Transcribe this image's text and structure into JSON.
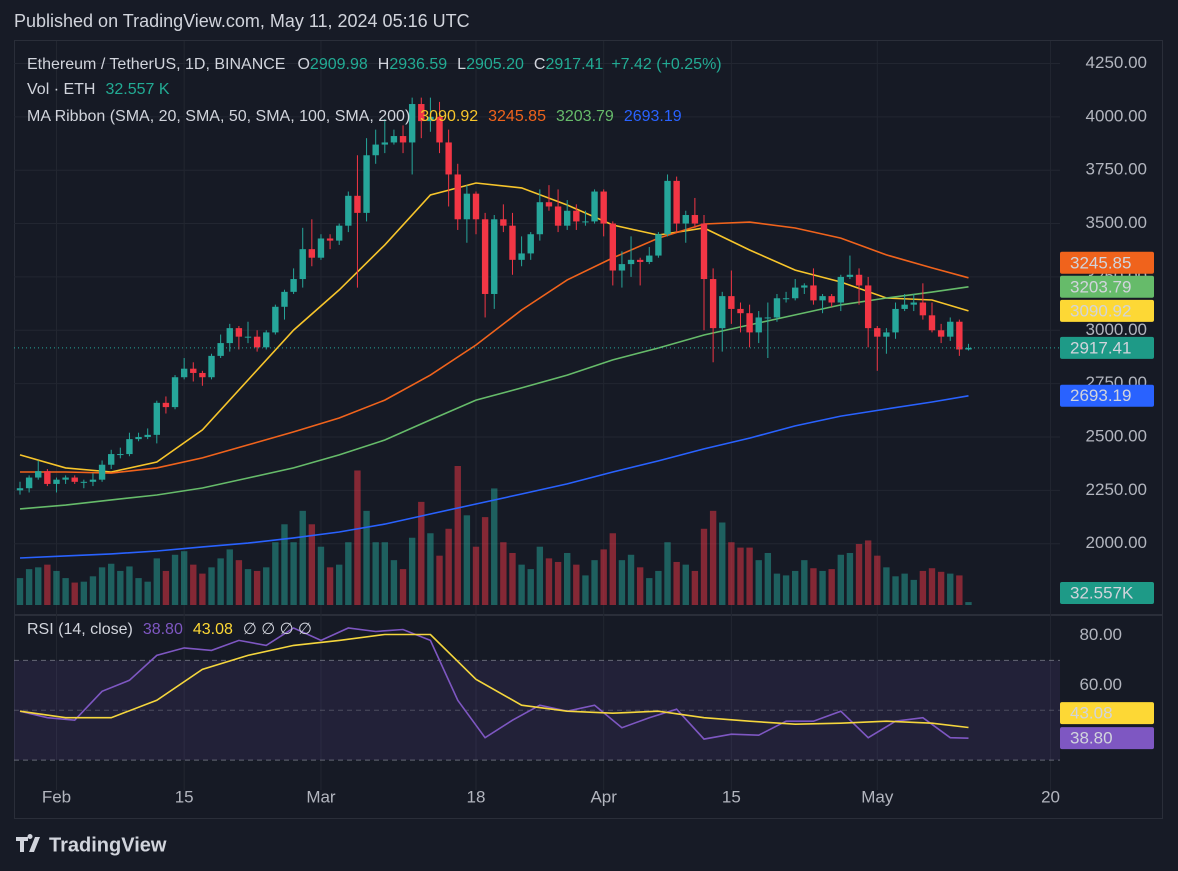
{
  "header": "Published on TradingView.com, May 11, 2024 05:16 UTC",
  "brand": "TradingView",
  "chart_data": [
    {
      "type": "candlestick",
      "title": "Ethereum / TetherUS, 1D, BINANCE",
      "legend": [
        {
          "key": "O",
          "value": "2909.98"
        },
        {
          "key": "H",
          "value": "2936.59"
        },
        {
          "key": "L",
          "value": "2905.20"
        },
        {
          "key": "C",
          "value": "2917.41"
        }
      ],
      "change": "+7.42 (+0.25%)",
      "volume_title": "Vol · ETH",
      "volume_legend": "32.557 K",
      "ma_title": "MA Ribbon (SMA, 20, SMA, 50, SMA, 100, SMA, 200)",
      "up_color": "#26a69a",
      "down_color": "#f23645",
      "categories": [
        "2024-01-28",
        "2024-01-29",
        "2024-01-30",
        "2024-01-31",
        "2024-02-01",
        "2024-02-02",
        "2024-02-03",
        "2024-02-04",
        "2024-02-05",
        "2024-02-06",
        "2024-02-07",
        "2024-02-08",
        "2024-02-09",
        "2024-02-10",
        "2024-02-11",
        "2024-02-12",
        "2024-02-13",
        "2024-02-14",
        "2024-02-15",
        "2024-02-16",
        "2024-02-17",
        "2024-02-18",
        "2024-02-19",
        "2024-02-20",
        "2024-02-21",
        "2024-02-22",
        "2024-02-23",
        "2024-02-24",
        "2024-02-25",
        "2024-02-26",
        "2024-02-27",
        "2024-02-28",
        "2024-02-29",
        "2024-03-01",
        "2024-03-02",
        "2024-03-03",
        "2024-03-04",
        "2024-03-05",
        "2024-03-06",
        "2024-03-07",
        "2024-03-08",
        "2024-03-09",
        "2024-03-10",
        "2024-03-11",
        "2024-03-12",
        "2024-03-13",
        "2024-03-14",
        "2024-03-15",
        "2024-03-16",
        "2024-03-17",
        "2024-03-18",
        "2024-03-19",
        "2024-03-20",
        "2024-03-21",
        "2024-03-22",
        "2024-03-23",
        "2024-03-24",
        "2024-03-25",
        "2024-03-26",
        "2024-03-27",
        "2024-03-28",
        "2024-03-29",
        "2024-03-30",
        "2024-03-31",
        "2024-04-01",
        "2024-04-02",
        "2024-04-03",
        "2024-04-04",
        "2024-04-05",
        "2024-04-06",
        "2024-04-07",
        "2024-04-08",
        "2024-04-09",
        "2024-04-10",
        "2024-04-11",
        "2024-04-12",
        "2024-04-13",
        "2024-04-14",
        "2024-04-15",
        "2024-04-16",
        "2024-04-17",
        "2024-04-18",
        "2024-04-19",
        "2024-04-20",
        "2024-04-21",
        "2024-04-22",
        "2024-04-23",
        "2024-04-24",
        "2024-04-25",
        "2024-04-26",
        "2024-04-27",
        "2024-04-28",
        "2024-04-29",
        "2024-04-30",
        "2024-05-01",
        "2024-05-02",
        "2024-05-03",
        "2024-05-04",
        "2024-05-05",
        "2024-05-06",
        "2024-05-07",
        "2024-05-08",
        "2024-05-09",
        "2024-05-10",
        "2024-05-11"
      ],
      "open": [
        2250,
        2260,
        2310,
        2340,
        2280,
        2300,
        2310,
        2290,
        2290,
        2300,
        2370,
        2420,
        2420,
        2490,
        2500,
        2510,
        2660,
        2640,
        2780,
        2820,
        2800,
        2780,
        2880,
        2940,
        3010,
        2970,
        2970,
        2920,
        2990,
        3110,
        3180,
        3240,
        3380,
        3340,
        3430,
        3420,
        3490,
        3630,
        3550,
        3820,
        3870,
        3880,
        3910,
        3880,
        4060,
        3980,
        4000,
        3880,
        3730,
        3520,
        3640,
        3520,
        3170,
        3520,
        3490,
        3330,
        3360,
        3450,
        3600,
        3580,
        3490,
        3560,
        3510,
        3510,
        3650,
        3500,
        3280,
        3310,
        3330,
        3320,
        3350,
        3450,
        3700,
        3500,
        3540,
        3500,
        3240,
        3010,
        3160,
        3100,
        3080,
        2990,
        3060,
        3060,
        3150,
        3150,
        3200,
        3210,
        3140,
        3160,
        3130,
        3250,
        3260,
        3210,
        3010,
        2970,
        2990,
        3100,
        3120,
        3130,
        3070,
        3000,
        2970,
        3040,
        2909.98
      ],
      "high": [
        2290,
        2320,
        2390,
        2350,
        2310,
        2320,
        2320,
        2300,
        2330,
        2390,
        2440,
        2450,
        2520,
        2520,
        2540,
        2670,
        2690,
        2790,
        2870,
        2850,
        2810,
        2890,
        2980,
        3030,
        3020,
        3040,
        3000,
        3000,
        3120,
        3190,
        3290,
        3480,
        3520,
        3450,
        3450,
        3500,
        3650,
        3820,
        3900,
        3940,
        3990,
        3940,
        3960,
        4090,
        4090,
        4090,
        4070,
        3940,
        3780,
        3680,
        3650,
        3550,
        3540,
        3590,
        3550,
        3440,
        3460,
        3660,
        3680,
        3660,
        3610,
        3590,
        3560,
        3660,
        3660,
        3510,
        3370,
        3440,
        3340,
        3390,
        3460,
        3730,
        3720,
        3560,
        3620,
        3540,
        3290,
        3180,
        3280,
        3130,
        3120,
        3090,
        3130,
        3170,
        3180,
        3240,
        3220,
        3290,
        3170,
        3170,
        3260,
        3350,
        3290,
        3250,
        3020,
        3010,
        3130,
        3170,
        3170,
        3220,
        3130,
        3030,
        3060,
        3050,
        2936.59
      ],
      "low": [
        2230,
        2240,
        2300,
        2270,
        2240,
        2280,
        2280,
        2260,
        2270,
        2290,
        2350,
        2400,
        2410,
        2480,
        2490,
        2470,
        2610,
        2630,
        2770,
        2760,
        2740,
        2770,
        2870,
        2900,
        2910,
        2940,
        2900,
        2910,
        2980,
        3050,
        3170,
        3200,
        3300,
        3330,
        3380,
        3400,
        3460,
        3200,
        3510,
        3780,
        3830,
        3870,
        3830,
        3730,
        3900,
        3930,
        3830,
        3580,
        3470,
        3410,
        3450,
        3060,
        3100,
        3460,
        3260,
        3300,
        3330,
        3420,
        3560,
        3460,
        3470,
        3470,
        3490,
        3500,
        3440,
        3210,
        3200,
        3250,
        3210,
        3310,
        3340,
        3440,
        3460,
        3410,
        3480,
        3000,
        2850,
        2900,
        3030,
        2990,
        2920,
        2940,
        2870,
        3040,
        3130,
        3140,
        3170,
        3120,
        3080,
        3110,
        3090,
        3240,
        3120,
        2920,
        2810,
        2890,
        2960,
        3090,
        3090,
        3050,
        2990,
        2940,
        2950,
        2880,
        2905.2
      ],
      "close": [
        2260,
        2310,
        2340,
        2280,
        2300,
        2310,
        2290,
        2290,
        2300,
        2370,
        2420,
        2420,
        2490,
        2500,
        2510,
        2660,
        2640,
        2780,
        2820,
        2800,
        2780,
        2880,
        2940,
        3010,
        2970,
        2970,
        2920,
        2990,
        3110,
        3180,
        3240,
        3380,
        3340,
        3430,
        3420,
        3490,
        3630,
        3550,
        3820,
        3870,
        3880,
        3910,
        3880,
        4060,
        3980,
        4000,
        3880,
        3730,
        3520,
        3640,
        3520,
        3170,
        3520,
        3490,
        3330,
        3360,
        3450,
        3600,
        3580,
        3490,
        3560,
        3510,
        3510,
        3650,
        3500,
        3280,
        3310,
        3330,
        3320,
        3350,
        3450,
        3700,
        3500,
        3540,
        3500,
        3240,
        3010,
        3160,
        3100,
        3080,
        2990,
        3060,
        3060,
        3150,
        3150,
        3200,
        3210,
        3140,
        3160,
        3130,
        3250,
        3260,
        3210,
        3010,
        2970,
        2990,
        3100,
        3120,
        3130,
        3070,
        3000,
        2970,
        3040,
        2910,
        2917.41
      ],
      "volume": [
        300,
        400,
        420,
        450,
        380,
        300,
        250,
        260,
        320,
        420,
        460,
        380,
        430,
        300,
        260,
        520,
        380,
        560,
        600,
        450,
        350,
        420,
        520,
        620,
        500,
        400,
        380,
        420,
        700,
        900,
        700,
        1050,
        900,
        650,
        420,
        450,
        700,
        1500,
        1050,
        700,
        700,
        500,
        400,
        750,
        1150,
        800,
        550,
        850,
        1550,
        1000,
        650,
        980,
        1300,
        700,
        580,
        450,
        400,
        650,
        520,
        480,
        580,
        450,
        330,
        500,
        620,
        800,
        500,
        560,
        420,
        300,
        380,
        700,
        480,
        450,
        380,
        850,
        1050,
        920,
        700,
        640,
        640,
        500,
        580,
        350,
        330,
        380,
        500,
        410,
        380,
        400,
        560,
        580,
        680,
        720,
        550,
        420,
        320,
        350,
        280,
        380,
        410,
        370,
        350,
        330,
        32.557
      ],
      "volume_lim": [
        0,
        6300
      ],
      "volume_tag": {
        "value": 32.557,
        "label": "32.557K",
        "color": "#1e9a87"
      },
      "ylim": [
        1680,
        4360
      ],
      "yticks": [
        {
          "value": 2000,
          "label": "2000.00"
        },
        {
          "value": 2250,
          "label": "2250.00"
        },
        {
          "value": 2500,
          "label": "2500.00"
        },
        {
          "value": 2750,
          "label": "2750.00"
        },
        {
          "value": 3000,
          "label": "3000.00"
        },
        {
          "value": 3250,
          "label": "3250.00"
        },
        {
          "value": 3500,
          "label": "3500.00"
        },
        {
          "value": 3750,
          "label": "3750.00"
        },
        {
          "value": 4000,
          "label": "4000.00"
        },
        {
          "value": 4250,
          "label": "4250.00"
        }
      ],
      "xticks": [
        {
          "value": "2024-02-01",
          "label": "Feb"
        },
        {
          "value": "2024-02-15",
          "label": "15"
        },
        {
          "value": "2024-03-01",
          "label": "Mar"
        },
        {
          "value": "2024-03-18",
          "label": "18"
        },
        {
          "value": "2024-04-01",
          "label": "Apr"
        },
        {
          "value": "2024-04-15",
          "label": "15"
        },
        {
          "value": "2024-05-01",
          "label": "May"
        },
        {
          "value": "2024-05-20",
          "label": "20"
        }
      ],
      "grid": true,
      "close_line": true,
      "ma_x": [
        "2024-01-28",
        "2024-02-02",
        "2024-02-07",
        "2024-02-12",
        "2024-02-17",
        "2024-02-22",
        "2024-02-27",
        "2024-03-03",
        "2024-03-08",
        "2024-03-13",
        "2024-03-18",
        "2024-03-23",
        "2024-03-28",
        "2024-04-02",
        "2024-04-07",
        "2024-04-12",
        "2024-04-17",
        "2024-04-22",
        "2024-04-27",
        "2024-05-02",
        "2024-05-07",
        "2024-05-11"
      ],
      "ma_series": [
        {
          "color": "#f7c52b",
          "values": [
            2416,
            2355,
            2336,
            2383,
            2533,
            2767,
            3001,
            3189,
            3400,
            3634,
            3690,
            3667,
            3587,
            3493,
            3446,
            3479,
            3376,
            3282,
            3226,
            3151,
            3142,
            3090.92
          ]
        },
        {
          "color": "#f0631c",
          "values": [
            2336,
            2336,
            2331,
            2355,
            2402,
            2463,
            2524,
            2589,
            2673,
            2790,
            2931,
            3095,
            3236,
            3339,
            3432,
            3498,
            3507,
            3479,
            3432,
            3353,
            3292,
            3245.85
          ]
        },
        {
          "color": "#66bb6a",
          "values": [
            2163,
            2181,
            2205,
            2228,
            2261,
            2308,
            2355,
            2416,
            2486,
            2580,
            2673,
            2730,
            2790,
            2861,
            2917,
            2978,
            3025,
            3072,
            3119,
            3151,
            3179,
            3203.79
          ]
        },
        {
          "color": "#2962ff",
          "values": [
            1933,
            1943,
            1952,
            1966,
            1985,
            2003,
            2027,
            2055,
            2092,
            2139,
            2186,
            2233,
            2280,
            2336,
            2388,
            2444,
            2495,
            2552,
            2598,
            2631,
            2664,
            2693.19
          ]
        }
      ],
      "price_tags": [
        {
          "value": 3090.92,
          "color": "#fdd835",
          "text_color": "#131722"
        },
        {
          "value": 3245.85,
          "color": "#f0631c",
          "text_color": "#ffffff"
        },
        {
          "value": 3203.79,
          "color": "#66bb6a",
          "text_color": "#131722"
        },
        {
          "value": 2693.19,
          "color": "#2962ff",
          "text_color": "#ffffff"
        },
        {
          "value": 2917.41,
          "color": "#1e9a87",
          "text_color": "#ffffff"
        }
      ]
    },
    {
      "type": "line",
      "title": "RSI (14, close)",
      "flags": "∅ ∅ ∅ ∅",
      "series": [
        {
          "color": "#7e57c2",
          "x": [
            "2024-01-28",
            "2024-01-31",
            "2024-02-03",
            "2024-02-06",
            "2024-02-09",
            "2024-02-12",
            "2024-02-15",
            "2024-02-18",
            "2024-02-21",
            "2024-02-24",
            "2024-02-27",
            "2024-03-01",
            "2024-03-04",
            "2024-03-07",
            "2024-03-10",
            "2024-03-13",
            "2024-03-16",
            "2024-03-19",
            "2024-03-22",
            "2024-03-25",
            "2024-03-28",
            "2024-03-31",
            "2024-04-03",
            "2024-04-06",
            "2024-04-09",
            "2024-04-12",
            "2024-04-15",
            "2024-04-18",
            "2024-04-21",
            "2024-04-24",
            "2024-04-27",
            "2024-04-30",
            "2024-05-03",
            "2024-05-06",
            "2024-05-09",
            "2024-05-11"
          ],
          "values": [
            49.6,
            47,
            46,
            57.6,
            62,
            72,
            75,
            74,
            78,
            76,
            83,
            78,
            83,
            81.6,
            82.4,
            78,
            54,
            39,
            46,
            52,
            49.6,
            52,
            43,
            47,
            50.4,
            38.4,
            40.4,
            40,
            45.6,
            45.6,
            49.6,
            39,
            45.6,
            47,
            39,
            38.8
          ]
        },
        {
          "color": "#f5d63d",
          "x": [
            "2024-01-28",
            "2024-02-02",
            "2024-02-07",
            "2024-02-12",
            "2024-02-17",
            "2024-02-22",
            "2024-02-27",
            "2024-03-03",
            "2024-03-08",
            "2024-03-13",
            "2024-03-18",
            "2024-03-23",
            "2024-03-28",
            "2024-04-02",
            "2024-04-07",
            "2024-04-12",
            "2024-04-17",
            "2024-04-22",
            "2024-04-27",
            "2024-05-02",
            "2024-05-07",
            "2024-05-11"
          ],
          "values": [
            49.6,
            47,
            47,
            54,
            66.4,
            72,
            76,
            78,
            80.4,
            80.4,
            62.4,
            52,
            49.6,
            48.8,
            49.6,
            47,
            45.6,
            44.4,
            44.8,
            45.6,
            44.8,
            43.08
          ]
        }
      ],
      "tags": [
        {
          "value": 38.8,
          "label": "38.80",
          "color": "#7e57c2",
          "text_color": "#ffffff"
        },
        {
          "value": 43.08,
          "label": "43.08",
          "color": "#fdd835",
          "text_color": "#131722"
        }
      ],
      "ylim": [
        18,
        87
      ],
      "yticks": [
        {
          "value": 60,
          "label": "60.00"
        },
        {
          "value": 80,
          "label": "80.00"
        }
      ],
      "levels": [
        70,
        50,
        30
      ]
    }
  ]
}
